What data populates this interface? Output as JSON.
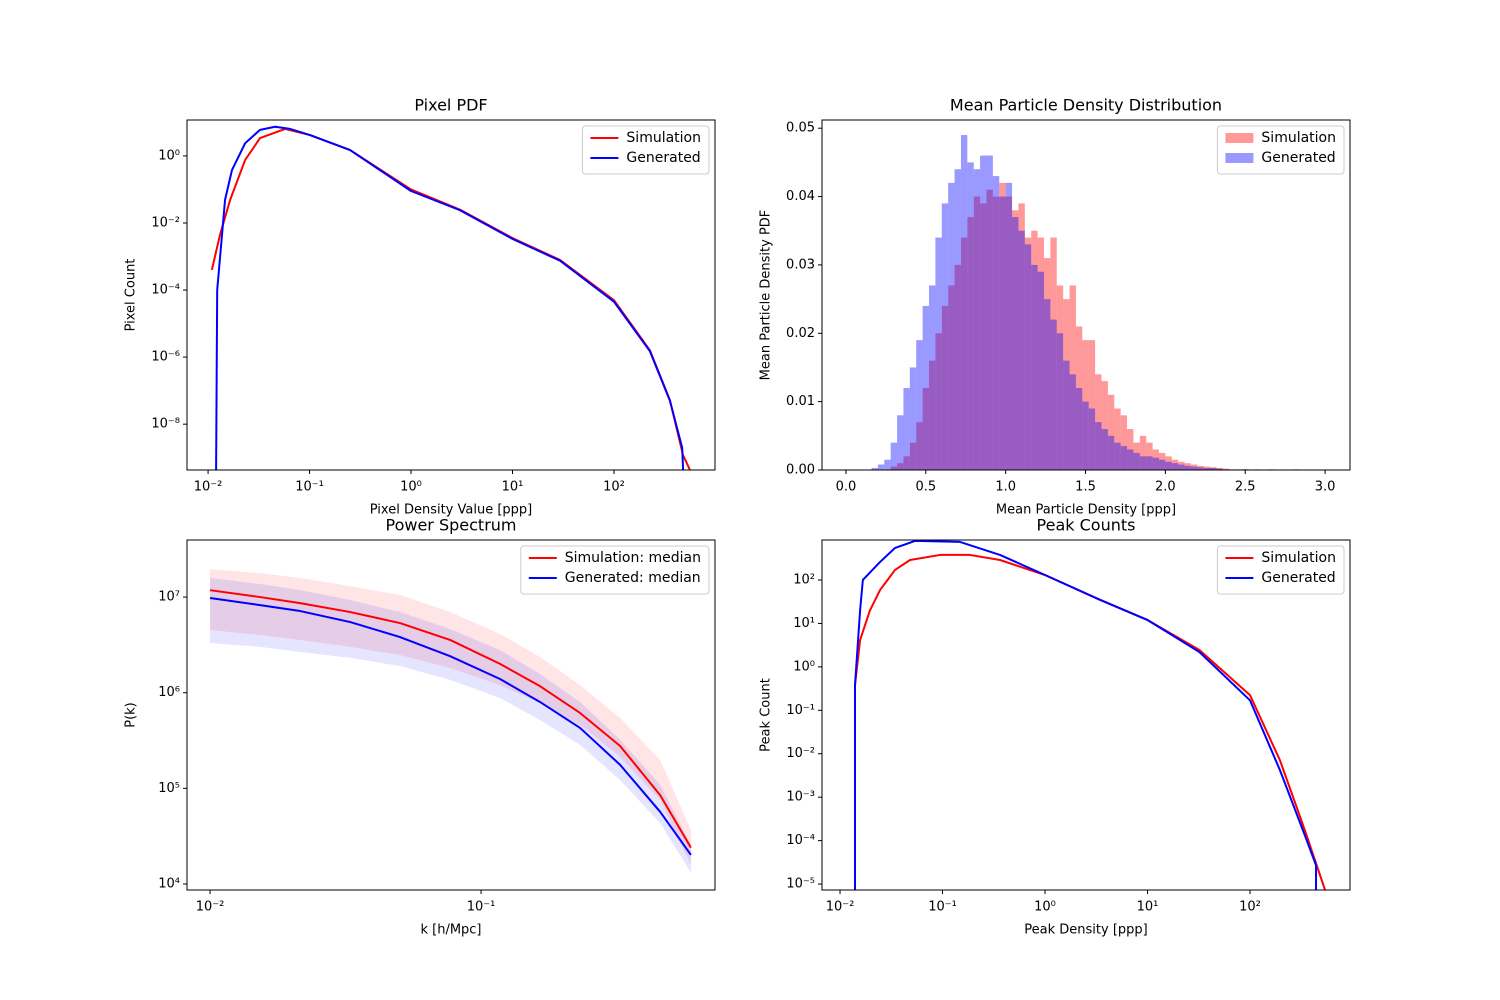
{
  "chart_data": [
    {
      "type": "line",
      "title": "Pixel PDF",
      "xlabel": "Pixel Density Value [ppp]",
      "ylabel": "Pixel Count",
      "xlog": true,
      "ylog": true,
      "xlim": [
        0.0062,
        990
      ],
      "ylim": [
        4.3e-10,
        11.8
      ],
      "xticks": [
        {
          "value": 0.01,
          "label": "10⁻²"
        },
        {
          "value": 0.1,
          "label": "10⁻¹"
        },
        {
          "value": 1,
          "label": "10⁰"
        },
        {
          "value": 10,
          "label": "10¹"
        },
        {
          "value": 100,
          "label": "10²"
        }
      ],
      "yticks": [
        {
          "value": 1e-08,
          "label": "10⁻⁸"
        },
        {
          "value": 1e-06,
          "label": "10⁻⁶"
        },
        {
          "value": 0.0001,
          "label": "10⁻⁴"
        },
        {
          "value": 0.01,
          "label": "10⁻²"
        },
        {
          "value": 1,
          "label": "10⁰"
        }
      ],
      "legend": "upper right",
      "series": [
        {
          "name": "Simulation",
          "color": "#ff0000",
          "x": [
            0.0109,
            0.0131,
            0.0165,
            0.0232,
            0.0325,
            0.0574,
            0.101,
            0.251,
            1,
            3.04,
            10.1,
            29.4,
            100,
            226,
            356,
            479,
            561
          ],
          "values": [
            0.0004,
            0.0044,
            0.049,
            0.76,
            3.4,
            6.4,
            4.2,
            1.5,
            0.1,
            0.025,
            0.0035,
            0.00079,
            5e-05,
            1.6e-06,
            5.2e-08,
            1.2e-09,
            4.3e-10
          ]
        },
        {
          "name": "Generated",
          "color": "#0000ff",
          "x": [
            0.012,
            0.0123,
            0.0147,
            0.0172,
            0.0232,
            0.0325,
            0.0457,
            0.0643,
            0.101,
            0.251,
            1,
            3.04,
            10.1,
            29.4,
            100,
            226,
            356,
            470,
            480
          ],
          "values": [
            4.3e-10,
            0.0001,
            0.049,
            0.38,
            2.4,
            6.0,
            7.4,
            6.4,
            4.2,
            1.5,
            0.09,
            0.024,
            0.0033,
            0.00075,
            4.5e-05,
            1.5e-06,
            5e-08,
            2e-09,
            4.3e-10
          ]
        }
      ]
    },
    {
      "type": "histogram",
      "title": "Mean Particle Density Distribution",
      "xlabel": "Mean Particle Density [ppp]",
      "ylabel": "Mean Particle Density PDF",
      "xlim": [
        -0.15,
        3.156
      ],
      "ylim": [
        0,
        0.0512
      ],
      "xticks": [
        {
          "value": 0,
          "label": "0.0"
        },
        0.5,
        {
          "value": 1,
          "label": "1.0"
        },
        1.5,
        {
          "value": 2,
          "label": "2.0"
        },
        2.5,
        {
          "value": 3,
          "label": "3.0"
        }
      ],
      "yticks": [
        {
          "value": 0,
          "label": "0.00"
        },
        0.01,
        0.02,
        0.03,
        0.04,
        0.05
      ],
      "legend": "upper right",
      "opacity": 0.4,
      "bins": [
        0,
        0.04,
        0.08,
        0.12,
        0.16,
        0.2,
        0.24,
        0.28,
        0.32,
        0.36,
        0.4,
        0.44,
        0.48,
        0.52,
        0.56,
        0.6,
        0.64,
        0.68,
        0.72,
        0.76,
        0.8,
        0.84,
        0.88,
        0.92,
        0.96,
        1,
        1.04,
        1.08,
        1.12,
        1.16,
        1.2,
        1.24,
        1.28,
        1.32,
        1.36,
        1.4,
        1.44,
        1.48,
        1.52,
        1.56,
        1.6,
        1.64,
        1.68,
        1.72,
        1.76,
        1.8,
        1.84,
        1.88,
        1.92,
        1.96,
        2,
        2.04,
        2.08,
        2.12,
        2.16,
        2.2,
        2.24,
        2.28,
        2.32,
        2.36,
        2.4,
        2.44,
        2.48,
        2.52,
        2.56,
        2.6,
        2.64,
        2.68,
        2.72,
        2.76,
        2.8,
        2.84,
        2.88,
        2.92,
        2.96,
        3
      ],
      "series": [
        {
          "name": "Simulation",
          "color": "#ff0000",
          "values": [
            0,
            0,
            0,
            0,
            0,
            0,
            0,
            0.0005,
            0.001,
            0.002,
            0.004,
            0.007,
            0.012,
            0.016,
            0.02,
            0.024,
            0.027,
            0.03,
            0.034,
            0.037,
            0.04,
            0.039,
            0.041,
            0.04,
            0.042,
            0.04,
            0.038,
            0.039,
            0.034,
            0.035,
            0.034,
            0.031,
            0.034,
            0.027,
            0.025,
            0.027,
            0.021,
            0.019,
            0.019,
            0.014,
            0.013,
            0.011,
            0.009,
            0.008,
            0.006,
            0.004,
            0.005,
            0.004,
            0.003,
            0.0025,
            0.002,
            0.0015,
            0.0012,
            0.001,
            0.0008,
            0.0006,
            0.0005,
            0.0004,
            0.0003,
            0.0002,
            0.0001,
            0.0001,
            0.0001,
            0,
            0.0001,
            0,
            0,
            0,
            0,
            0,
            0.0001,
            0,
            0,
            0,
            0
          ]
        },
        {
          "name": "Generated",
          "color": "#0000ff",
          "values": [
            0,
            0,
            0,
            0,
            0.0003,
            0.0008,
            0.0015,
            0.004,
            0.008,
            0.012,
            0.015,
            0.019,
            0.024,
            0.027,
            0.034,
            0.039,
            0.042,
            0.044,
            0.049,
            0.045,
            0.044,
            0.046,
            0.046,
            0.043,
            0.04,
            0.042,
            0.037,
            0.035,
            0.033,
            0.03,
            0.029,
            0.025,
            0.022,
            0.02,
            0.016,
            0.014,
            0.012,
            0.01,
            0.009,
            0.007,
            0.006,
            0.005,
            0.004,
            0.0035,
            0.003,
            0.0025,
            0.002,
            0.002,
            0.0018,
            0.0015,
            0.0012,
            0.001,
            0.0008,
            0.0006,
            0.0005,
            0.0004,
            0.0003,
            0.0003,
            0.0002,
            0.0001,
            0,
            0,
            0.0001,
            0,
            0,
            0,
            0.0001,
            0,
            0,
            0,
            0,
            0,
            0,
            0,
            0
          ]
        }
      ]
    },
    {
      "type": "line",
      "title": "Power Spectrum",
      "xlabel": "k [h/Mpc]",
      "ylabel": "P(k)",
      "xlog": true,
      "ylog": true,
      "xlim": [
        0.00822,
        0.73
      ],
      "ylim": [
        8650,
        39500000.0
      ],
      "xticks": [
        {
          "value": 0.01,
          "label": "10⁻²"
        },
        {
          "value": 0.1,
          "label": "10⁻¹"
        }
      ],
      "yticks": [
        {
          "value": 10000,
          "label": "10⁴"
        },
        {
          "value": 100000,
          "label": "10⁵"
        },
        {
          "value": 1000000,
          "label": "10⁶"
        },
        {
          "value": 10000000,
          "label": "10⁷"
        }
      ],
      "legend": "upper right",
      "x": [
        0.01,
        0.0153,
        0.0215,
        0.0329,
        0.0502,
        0.0769,
        0.1175,
        0.165,
        0.232,
        0.326,
        0.458,
        0.595
      ],
      "series": [
        {
          "name": "Simulation: median",
          "color": "#ff0000",
          "values": [
            11800000.0,
            10000000.0,
            8650000.0,
            6970000.0,
            5350000.0,
            3560000.0,
            2000000.0,
            1170000.0,
            614000.0,
            277000.0,
            85000.0,
            24000.0
          ],
          "upper": [
            19600000.0,
            17800000.0,
            15800000.0,
            13000000.0,
            10500000.0,
            6970000.0,
            4110000.0,
            2360000.0,
            1200000.0,
            544000.0,
            198000.0,
            36700.0
          ],
          "lower": [
            4520000.0,
            4010000.0,
            3560000.0,
            3010000.0,
            2480000.0,
            1810000.0,
            1200000.0,
            780000.0,
            459000.0,
            213000.0,
            75700.0,
            15800.0
          ]
        },
        {
          "name": "Generated: median",
          "color": "#0000ff",
          "values": [
            9770000.0,
            8240000.0,
            7140000.0,
            5480000.0,
            3820000.0,
            2410000.0,
            1390000.0,
            800000.0,
            428000.0,
            176000.0,
            56800.0,
            20100.0
          ],
          "upper": [
            15800000.0,
            13700000.0,
            11800000.0,
            9310000.0,
            6970000.0,
            4630000.0,
            2790000.0,
            1570000.0,
            800000.0,
            321000.0,
            109000.0,
            25600.0
          ],
          "lower": [
            3310000.0,
            3010000.0,
            2660000.0,
            2310000.0,
            1900000.0,
            1360000.0,
            881000.0,
            519000.0,
            285000.0,
            122000.0,
            43500.0,
            13100.0
          ]
        }
      ]
    },
    {
      "type": "line",
      "title": "Peak Counts",
      "xlabel": "Peak Density [ppp]",
      "ylabel": "Peak Count",
      "xlog": true,
      "ylog": true,
      "xlim": [
        0.00667,
        946
      ],
      "ylim": [
        7.3e-06,
        832
      ],
      "xticks": [
        {
          "value": 0.01,
          "label": "10⁻²"
        },
        {
          "value": 0.1,
          "label": "10⁻¹"
        },
        {
          "value": 1,
          "label": "10⁰"
        },
        {
          "value": 10,
          "label": "10¹"
        },
        {
          "value": 100,
          "label": "10²"
        }
      ],
      "yticks": [
        {
          "value": 1e-05,
          "label": "10⁻⁵"
        },
        {
          "value": 0.0001,
          "label": "10⁻⁴"
        },
        {
          "value": 0.001,
          "label": "10⁻³"
        },
        {
          "value": 0.01,
          "label": "10⁻²"
        },
        {
          "value": 0.1,
          "label": "10⁻¹"
        },
        {
          "value": 1,
          "label": "10⁰"
        },
        {
          "value": 10,
          "label": "10¹"
        },
        {
          "value": 100,
          "label": "10²"
        }
      ],
      "legend": "upper right",
      "series": [
        {
          "name": "Simulation",
          "color": "#ff0000",
          "x": [
            0.014,
            0.014,
            0.0157,
            0.0196,
            0.0246,
            0.0344,
            0.0482,
            0.0946,
            0.185,
            0.364,
            1,
            3.44,
            10,
            32.1,
            100,
            196,
            344,
            540
          ],
          "values": [
            7.3e-06,
            0.38,
            4.15,
            20,
            59,
            170,
            288,
            377,
            377,
            288,
            130,
            35,
            12,
            2.44,
            0.224,
            0.0071,
            0.00017,
            7.3e-06
          ]
        },
        {
          "name": "Generated",
          "color": "#0000ff",
          "x": [
            0.014,
            0.014,
            0.0157,
            0.0167,
            0.0246,
            0.0344,
            0.054,
            0.148,
            0.364,
            1,
            3.44,
            10,
            32.1,
            100,
            196,
            344,
            441,
            441
          ],
          "values": [
            7.3e-06,
            0.38,
            20,
            100,
            260,
            546,
            794,
            751,
            377,
            130,
            35,
            12,
            2.2,
            0.17,
            0.0042,
            0.00013,
            2.7e-05,
            7.3e-06
          ]
        }
      ]
    }
  ]
}
